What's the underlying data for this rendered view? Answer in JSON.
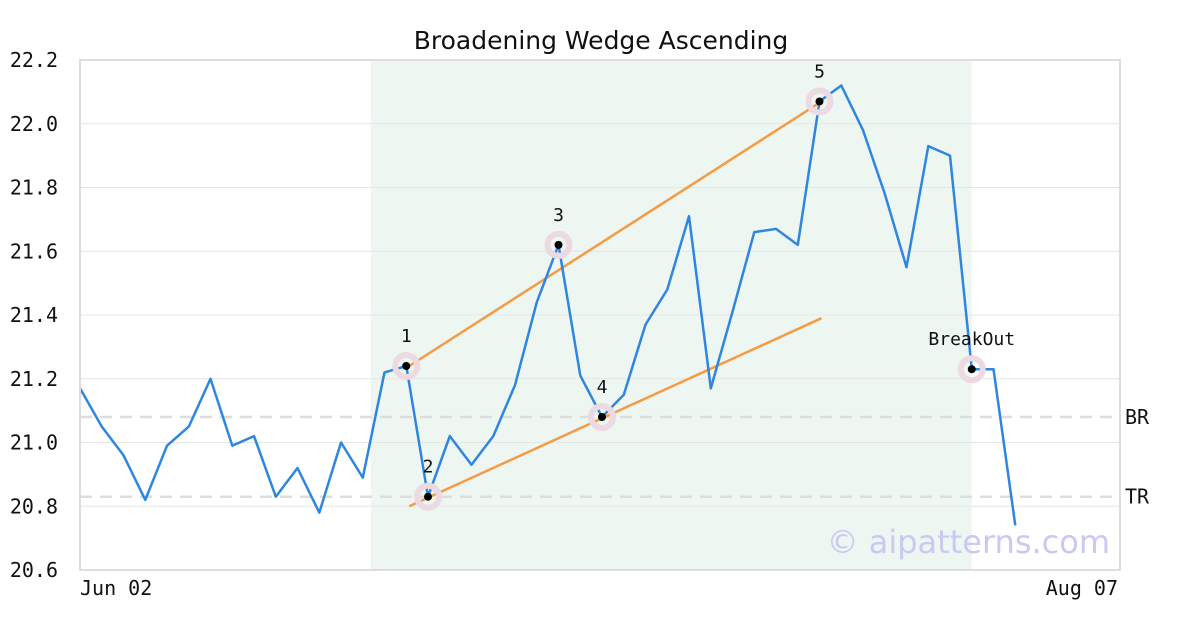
{
  "chart_data": {
    "type": "line",
    "title": "Broadening Wedge Ascending",
    "watermark": "© aipatterns.com",
    "ylim": [
      20.6,
      22.2
    ],
    "yticks": [
      "20.6",
      "20.8",
      "21.0",
      "21.2",
      "21.4",
      "21.6",
      "21.8",
      "22.0",
      "22.2"
    ],
    "xtick_labels": {
      "first": "Jun 02",
      "last": "Aug 07"
    },
    "grid": true,
    "series": [
      {
        "values": [
          21.17,
          21.05,
          20.96,
          20.82,
          20.99,
          21.05,
          21.2,
          20.99,
          21.02,
          20.83,
          20.92,
          20.78,
          21.0,
          20.89,
          21.22,
          21.24,
          20.83,
          21.02,
          20.93,
          21.02,
          21.18,
          21.44,
          21.62,
          21.21,
          21.08,
          21.15,
          21.37,
          21.48,
          21.71,
          21.17,
          21.41,
          21.66,
          21.67,
          21.62,
          22.07,
          22.12,
          21.98,
          21.78,
          21.55,
          21.93,
          21.9,
          21.23,
          21.23,
          20.74
        ],
        "color": "#2e86de"
      }
    ],
    "highlight_region": {
      "from_index": 13,
      "to_index": 41,
      "color": "#eef6f2"
    },
    "trendlines": [
      {
        "from": [
          15,
          21.24
        ],
        "to": [
          34,
          22.07
        ],
        "color": "#f39c45"
      },
      {
        "from": [
          15,
          20.8
        ],
        "to": [
          34,
          21.39
        ],
        "color": "#f39c45"
      }
    ],
    "points": [
      {
        "label": "1",
        "index": 15,
        "value": 21.24,
        "label_pos": "above"
      },
      {
        "label": "2",
        "index": 16,
        "value": 20.83,
        "label_pos": "above"
      },
      {
        "label": "3",
        "index": 22,
        "value": 21.62,
        "label_pos": "above"
      },
      {
        "label": "4",
        "index": 24,
        "value": 21.08,
        "label_pos": "above"
      },
      {
        "label": "5",
        "index": 34,
        "value": 22.07,
        "label_pos": "above"
      },
      {
        "label": "BreakOut",
        "index": 41,
        "value": 21.23,
        "label_pos": "above"
      }
    ],
    "reference_lines": [
      {
        "label": "BR",
        "value": 21.08
      },
      {
        "label": "TR",
        "value": 20.83
      }
    ]
  }
}
